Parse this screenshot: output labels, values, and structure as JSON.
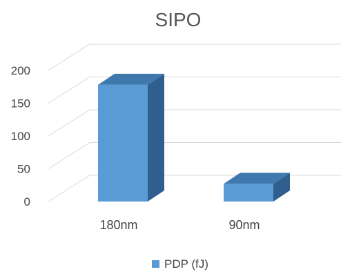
{
  "chart_data": {
    "type": "bar",
    "title": "SIPO",
    "categories": [
      "180nm",
      "90nm"
    ],
    "series": [
      {
        "name": "PDP (fJ)",
        "values": [
          178,
          27
        ],
        "color": "#5B9BD5"
      }
    ],
    "yticks": [
      0,
      50,
      100,
      150,
      200
    ],
    "ylim": [
      0,
      200
    ],
    "grid": true,
    "three_d": true,
    "legend_position": "bottom"
  }
}
